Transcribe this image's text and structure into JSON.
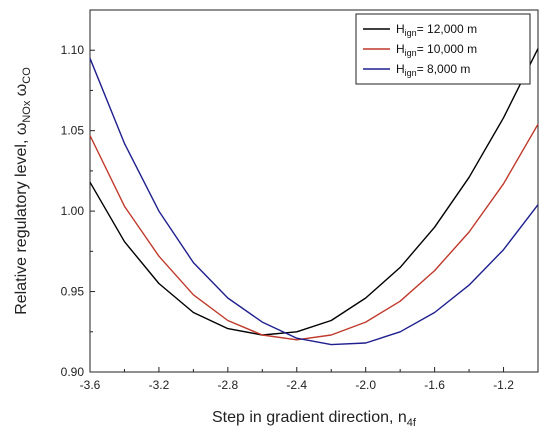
{
  "chart_data": {
    "type": "line",
    "xlabel": "Step in gradient direction, n",
    "xlabel_sub": "4f",
    "ylabel": "Relative regulatory level, ω",
    "ylabel_sub1": "NOx",
    "ylabel_mid": " ω",
    "ylabel_sub2": "CO",
    "xlim": [
      -3.6,
      -1.0
    ],
    "ylim": [
      0.9,
      1.125
    ],
    "xticks": [
      -3.6,
      -3.2,
      -2.8,
      -2.4,
      -2.0,
      -1.6,
      -1.2
    ],
    "yticks": [
      0.9,
      0.95,
      1.0,
      1.05,
      1.1
    ],
    "xtick_labels": [
      "-3.6",
      "-3.2",
      "-2.8",
      "-2.4",
      "-2.0",
      "-1.6",
      "-1.2"
    ],
    "ytick_labels": [
      "0.90",
      "0.95",
      "1.00",
      "1.05",
      "1.10"
    ],
    "legend_position": "top-right",
    "series": [
      {
        "name_main": "H",
        "name_sub": "ign",
        "name_rest": "= 12,000 m",
        "color": "#000000",
        "x": [
          -3.6,
          -3.4,
          -3.2,
          -3.0,
          -2.8,
          -2.6,
          -2.4,
          -2.2,
          -2.0,
          -1.8,
          -1.6,
          -1.4,
          -1.2,
          -1.0
        ],
        "y": [
          1.018,
          0.981,
          0.955,
          0.937,
          0.927,
          0.923,
          0.925,
          0.932,
          0.946,
          0.965,
          0.99,
          1.021,
          1.058,
          1.101
        ]
      },
      {
        "name_main": "H",
        "name_sub": "ign",
        "name_rest": "= 10,000 m",
        "color": "#c0392b",
        "x": [
          -3.6,
          -3.4,
          -3.2,
          -3.0,
          -2.8,
          -2.6,
          -2.4,
          -2.2,
          -2.0,
          -1.8,
          -1.6,
          -1.4,
          -1.2,
          -1.0
        ],
        "y": [
          1.047,
          1.003,
          0.972,
          0.948,
          0.932,
          0.923,
          0.92,
          0.923,
          0.931,
          0.944,
          0.963,
          0.987,
          1.017,
          1.054
        ]
      },
      {
        "name_main": "H",
        "name_sub": "ign",
        "name_rest": "=  8,000 m",
        "color": "#1f1f8f",
        "x": [
          -3.6,
          -3.4,
          -3.2,
          -3.0,
          -2.8,
          -2.6,
          -2.4,
          -2.2,
          -2.0,
          -1.8,
          -1.6,
          -1.4,
          -1.2,
          -1.0
        ],
        "y": [
          1.095,
          1.042,
          1.0,
          0.968,
          0.946,
          0.931,
          0.921,
          0.917,
          0.918,
          0.925,
          0.937,
          0.954,
          0.976,
          1.004
        ]
      }
    ]
  }
}
